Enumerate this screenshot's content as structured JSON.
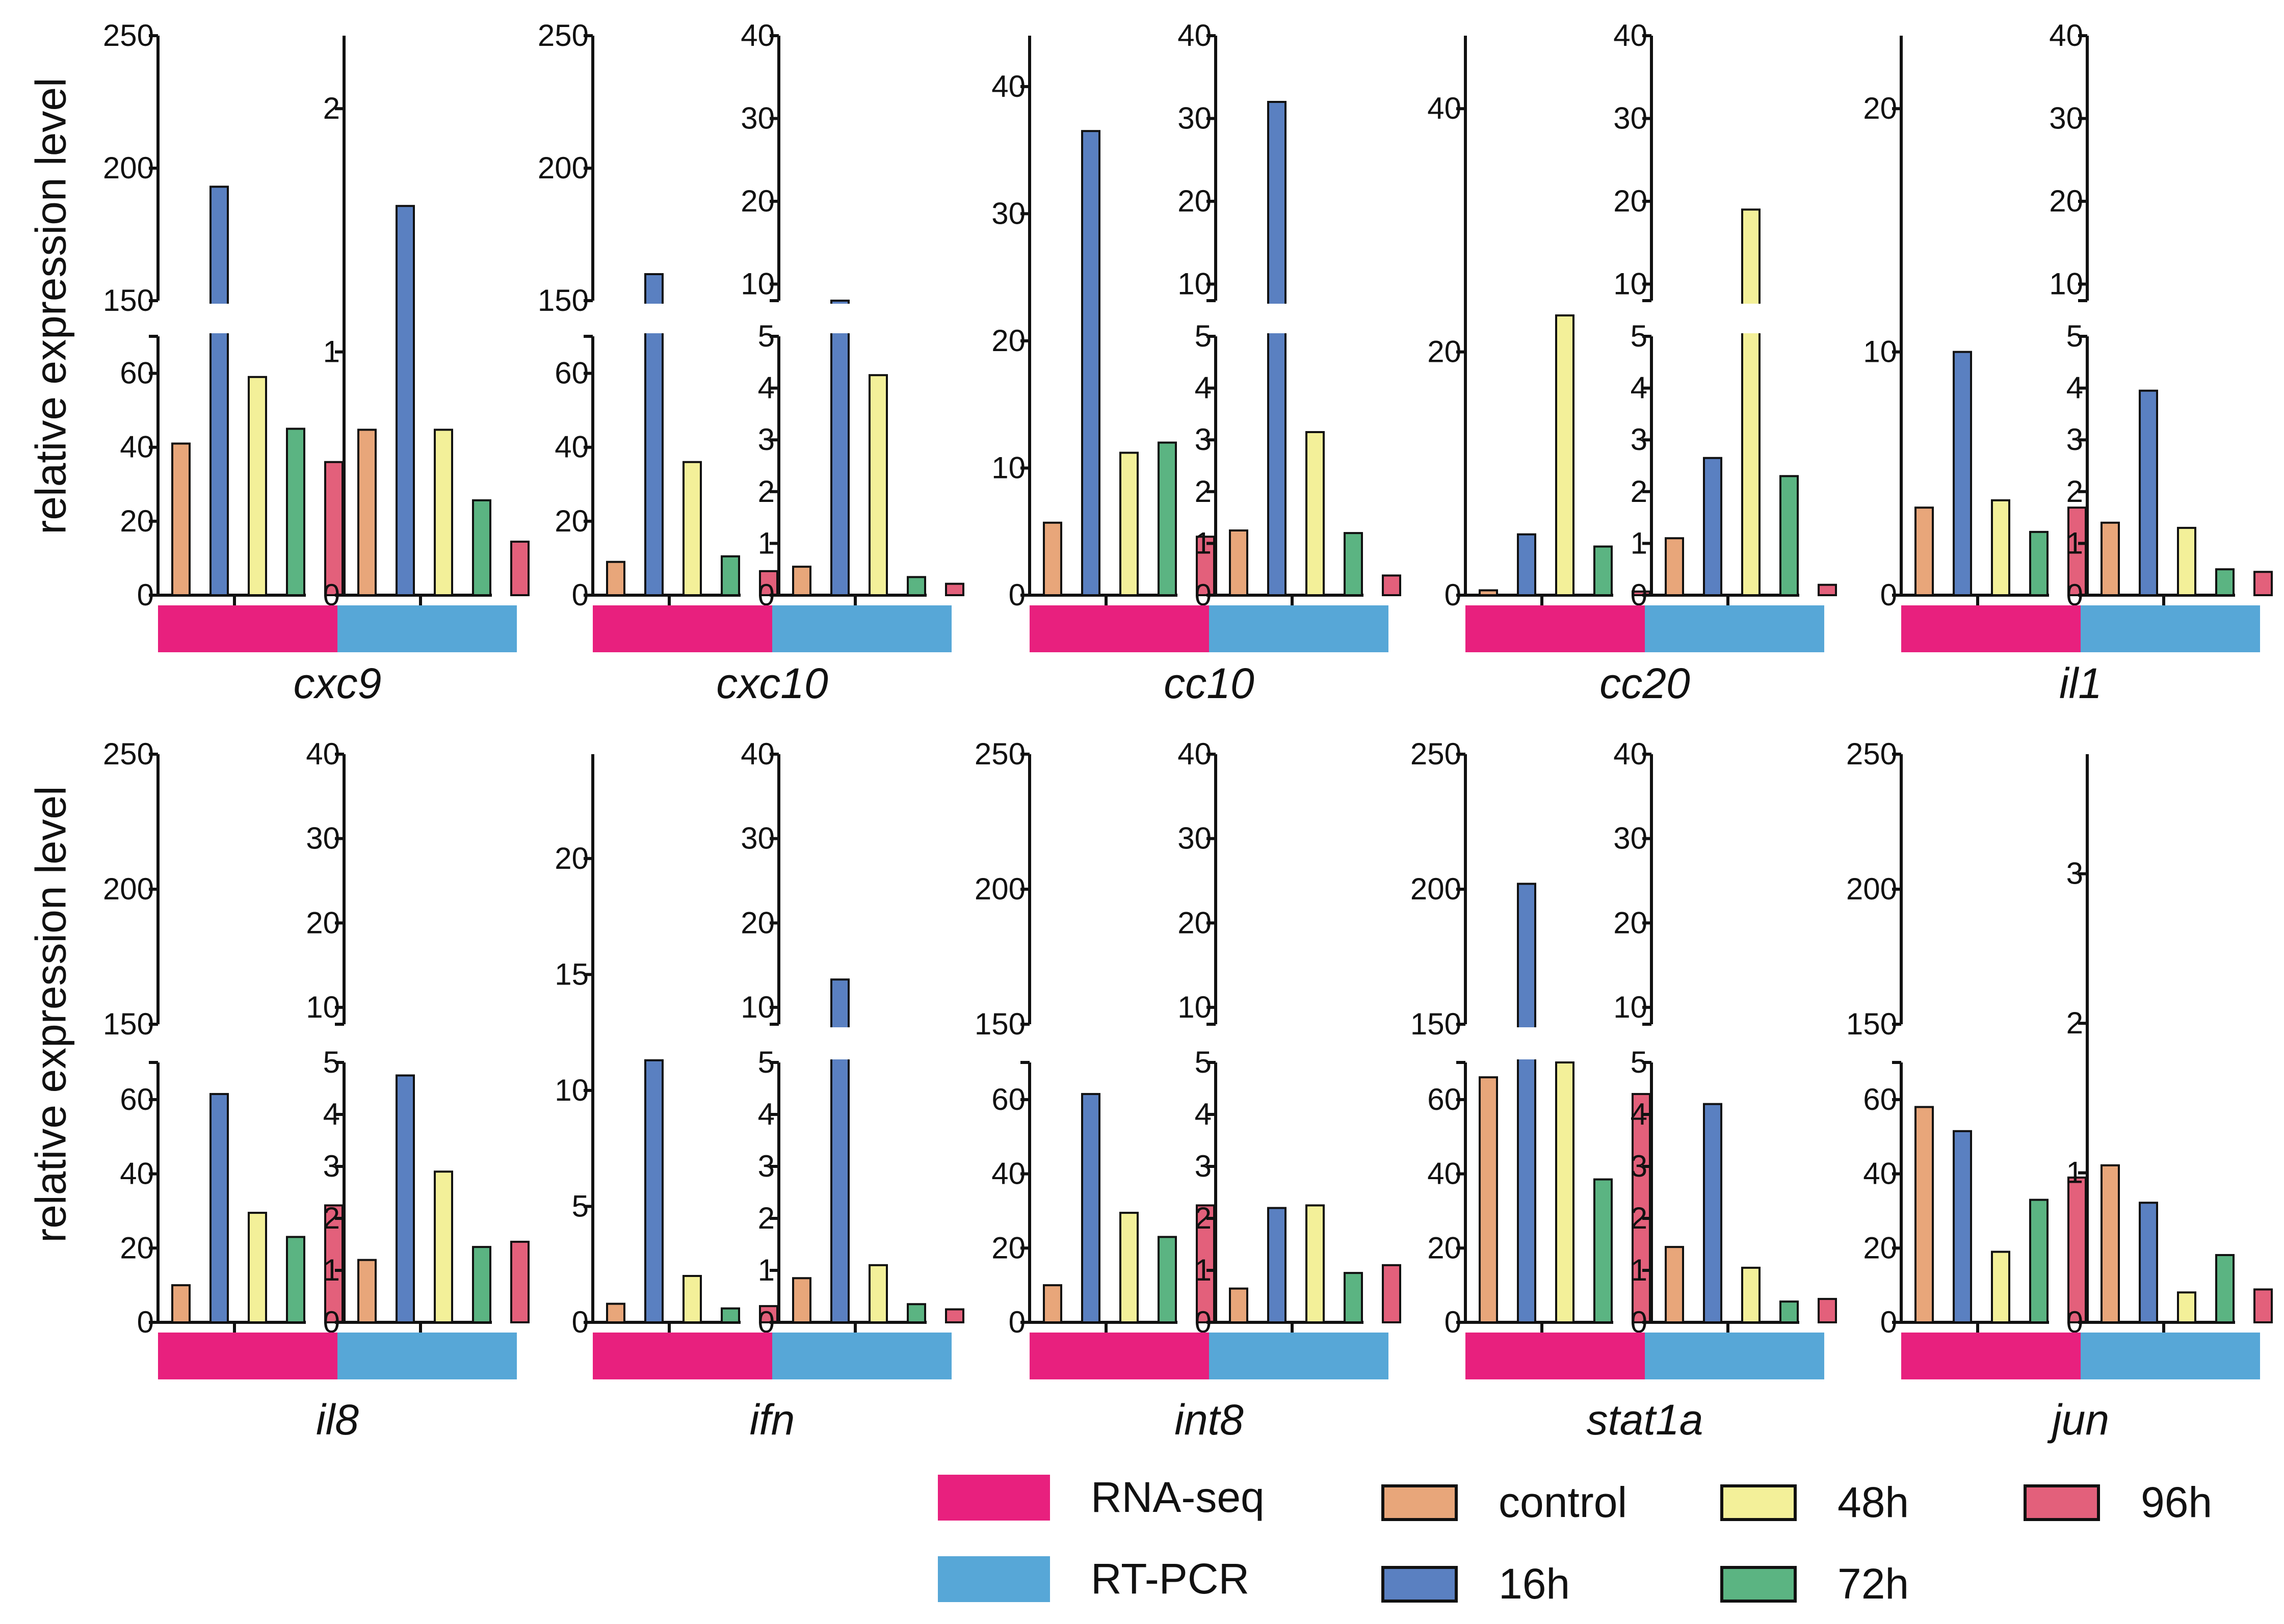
{
  "y_axis_label": "relative expression level",
  "legend": {
    "methods": [
      {
        "name": "RNA-seq",
        "color": "#E8207E"
      },
      {
        "name": "RT-PCR",
        "color": "#57A7D7"
      }
    ],
    "timepoints": [
      {
        "name": "control",
        "color": "#E8A67A"
      },
      {
        "name": "16h",
        "color": "#5A80C1"
      },
      {
        "name": "48h",
        "color": "#F3F099"
      },
      {
        "name": "72h",
        "color": "#5BB482"
      },
      {
        "name": "96h",
        "color": "#E3607B"
      }
    ]
  },
  "chart_data": [
    {
      "type": "bar",
      "gene": "cxc9",
      "categories": [
        "control",
        "16h",
        "48h",
        "72h",
        "96h"
      ],
      "series": [
        {
          "name": "RNA-seq",
          "values": [
            41,
            193,
            59,
            45,
            36
          ],
          "axis": {
            "broken": true,
            "lower": [
              0,
              70
            ],
            "lower_ticks": [
              0,
              20,
              40,
              60
            ],
            "upper": [
              150,
              250
            ],
            "upper_ticks": [
              150,
              200,
              250
            ]
          }
        },
        {
          "name": "RT-PCR",
          "values": [
            0.68,
            1.6,
            0.68,
            0.39,
            0.22
          ],
          "axis": {
            "broken": false,
            "range": [
              0,
              2.3
            ],
            "ticks": [
              0,
              1,
              2
            ]
          }
        }
      ]
    },
    {
      "type": "bar",
      "gene": "cxc10",
      "categories": [
        "control",
        "16h",
        "48h",
        "72h",
        "96h"
      ],
      "series": [
        {
          "name": "RNA-seq",
          "values": [
            9,
            160,
            36,
            10.5,
            6.5
          ],
          "axis": {
            "broken": true,
            "lower": [
              0,
              70
            ],
            "lower_ticks": [
              0,
              20,
              40,
              60
            ],
            "upper": [
              150,
              250
            ],
            "upper_ticks": [
              150,
              200,
              250
            ]
          }
        },
        {
          "name": "RT-PCR",
          "values": [
            0.55,
            7.5,
            4.25,
            0.35,
            0.22
          ],
          "axis": {
            "broken": true,
            "lower": [
              0,
              5
            ],
            "lower_ticks": [
              0,
              1,
              2,
              3,
              4,
              5
            ],
            "upper": [
              8,
              40
            ],
            "upper_ticks": [
              10,
              20,
              30,
              40
            ]
          }
        }
      ]
    },
    {
      "type": "bar",
      "gene": "cc10",
      "categories": [
        "control",
        "16h",
        "48h",
        "72h",
        "96h"
      ],
      "series": [
        {
          "name": "RNA-seq",
          "values": [
            5.7,
            36.5,
            11.2,
            12.0,
            4.6
          ],
          "axis": {
            "broken": false,
            "range": [
              0,
              44
            ],
            "ticks": [
              0,
              10,
              20,
              30,
              40
            ]
          }
        },
        {
          "name": "RT-PCR",
          "values": [
            1.25,
            32,
            3.15,
            1.2,
            0.38
          ],
          "axis": {
            "broken": true,
            "lower": [
              0,
              5
            ],
            "lower_ticks": [
              0,
              1,
              2,
              3,
              4,
              5
            ],
            "upper": [
              8,
              40
            ],
            "upper_ticks": [
              10,
              20,
              30,
              40
            ]
          }
        }
      ]
    },
    {
      "type": "bar",
      "gene": "cc20",
      "categories": [
        "control",
        "16h",
        "48h",
        "72h",
        "96h"
      ],
      "series": [
        {
          "name": "RNA-seq",
          "values": [
            0.4,
            5.0,
            23.0,
            4.0,
            0.3
          ],
          "axis": {
            "broken": false,
            "range": [
              0,
              46
            ],
            "ticks": [
              0,
              20,
              40
            ]
          }
        },
        {
          "name": "RT-PCR",
          "values": [
            1.1,
            2.65,
            19.0,
            2.3,
            0.2
          ],
          "axis": {
            "broken": true,
            "lower": [
              0,
              5
            ],
            "lower_ticks": [
              0,
              1,
              2,
              3,
              4,
              5
            ],
            "upper": [
              8,
              40
            ],
            "upper_ticks": [
              10,
              20,
              30,
              40
            ]
          }
        }
      ]
    },
    {
      "type": "bar",
      "gene": "il1",
      "categories": [
        "control",
        "16h",
        "48h",
        "72h",
        "96h"
      ],
      "series": [
        {
          "name": "RNA-seq",
          "values": [
            3.6,
            10.0,
            3.9,
            2.6,
            3.6
          ],
          "axis": {
            "broken": false,
            "range": [
              0,
              23
            ],
            "ticks": [
              0,
              10,
              20
            ]
          }
        },
        {
          "name": "RT-PCR",
          "values": [
            1.4,
            3.95,
            1.3,
            0.5,
            0.45
          ],
          "axis": {
            "broken": true,
            "lower": [
              0,
              5
            ],
            "lower_ticks": [
              0,
              1,
              2,
              3,
              4,
              5
            ],
            "upper": [
              8,
              40
            ],
            "upper_ticks": [
              10,
              20,
              30,
              40
            ]
          }
        }
      ]
    },
    {
      "type": "bar",
      "gene": "il8",
      "categories": [
        "control",
        "16h",
        "48h",
        "72h",
        "96h"
      ],
      "series": [
        {
          "name": "RNA-seq",
          "values": [
            10,
            61.5,
            29.5,
            23,
            31.5
          ],
          "axis": {
            "broken": true,
            "lower": [
              0,
              70
            ],
            "lower_ticks": [
              0,
              20,
              40,
              60
            ],
            "upper": [
              150,
              250
            ],
            "upper_ticks": [
              150,
              200,
              250
            ]
          }
        },
        {
          "name": "RT-PCR",
          "values": [
            1.2,
            4.75,
            2.9,
            1.45,
            1.55
          ],
          "axis": {
            "broken": true,
            "lower": [
              0,
              5
            ],
            "lower_ticks": [
              0,
              1,
              2,
              3,
              4,
              5
            ],
            "upper": [
              8,
              40
            ],
            "upper_ticks": [
              10,
              20,
              30,
              40
            ]
          }
        }
      ]
    },
    {
      "type": "bar",
      "gene": "ifn",
      "categories": [
        "control",
        "16h",
        "48h",
        "72h",
        "96h"
      ],
      "series": [
        {
          "name": "RNA-seq",
          "values": [
            0.8,
            11.3,
            2.0,
            0.6,
            0.7
          ],
          "axis": {
            "broken": false,
            "range": [
              0,
              24.5
            ],
            "ticks": [
              0,
              5,
              10,
              15,
              20
            ]
          }
        },
        {
          "name": "RT-PCR",
          "values": [
            0.85,
            13.3,
            1.1,
            0.35,
            0.25
          ],
          "axis": {
            "broken": true,
            "lower": [
              0,
              5
            ],
            "lower_ticks": [
              0,
              1,
              2,
              3,
              4,
              5
            ],
            "upper": [
              8,
              40
            ],
            "upper_ticks": [
              10,
              20,
              30,
              40
            ]
          }
        }
      ]
    },
    {
      "type": "bar",
      "gene": "int8",
      "categories": [
        "control",
        "16h",
        "48h",
        "72h",
        "96h"
      ],
      "series": [
        {
          "name": "RNA-seq",
          "values": [
            10,
            61.5,
            29.5,
            23,
            31.5
          ],
          "axis": {
            "broken": true,
            "lower": [
              0,
              70
            ],
            "lower_ticks": [
              0,
              20,
              40,
              60
            ],
            "upper": [
              150,
              250
            ],
            "upper_ticks": [
              150,
              200,
              250
            ]
          }
        },
        {
          "name": "RT-PCR",
          "values": [
            0.65,
            2.2,
            2.25,
            0.95,
            1.1
          ],
          "axis": {
            "broken": true,
            "lower": [
              0,
              5
            ],
            "lower_ticks": [
              0,
              1,
              2,
              3,
              4,
              5
            ],
            "upper": [
              8,
              40
            ],
            "upper_ticks": [
              10,
              20,
              30,
              40
            ]
          }
        }
      ]
    },
    {
      "type": "bar",
      "gene": "stat1a",
      "categories": [
        "control",
        "16h",
        "48h",
        "72h",
        "96h"
      ],
      "series": [
        {
          "name": "RNA-seq",
          "values": [
            66,
            202,
            70,
            38.5,
            61.5
          ],
          "axis": {
            "broken": true,
            "lower": [
              0,
              70
            ],
            "lower_ticks": [
              0,
              20,
              40,
              60
            ],
            "upper": [
              150,
              250
            ],
            "upper_ticks": [
              150,
              200,
              250
            ]
          }
        },
        {
          "name": "RT-PCR",
          "values": [
            1.45,
            4.2,
            1.05,
            0.4,
            0.45
          ],
          "axis": {
            "broken": true,
            "lower": [
              0,
              5
            ],
            "lower_ticks": [
              0,
              1,
              2,
              3,
              4,
              5
            ],
            "upper": [
              8,
              40
            ],
            "upper_ticks": [
              10,
              20,
              30,
              40
            ]
          }
        }
      ]
    },
    {
      "type": "bar",
      "gene": "jun",
      "categories": [
        "control",
        "16h",
        "48h",
        "72h",
        "96h"
      ],
      "series": [
        {
          "name": "RNA-seq",
          "values": [
            58,
            51.5,
            19,
            33,
            39
          ],
          "axis": {
            "broken": true,
            "lower": [
              0,
              70
            ],
            "lower_ticks": [
              0,
              20,
              40,
              60
            ],
            "upper": [
              150,
              250
            ],
            "upper_ticks": [
              150,
              200,
              250
            ]
          }
        },
        {
          "name": "RT-PCR",
          "values": [
            1.05,
            0.8,
            0.2,
            0.45,
            0.22
          ],
          "axis": {
            "broken": false,
            "range": [
              0,
              3.8
            ],
            "ticks": [
              0,
              1,
              2,
              3
            ]
          }
        }
      ]
    }
  ]
}
